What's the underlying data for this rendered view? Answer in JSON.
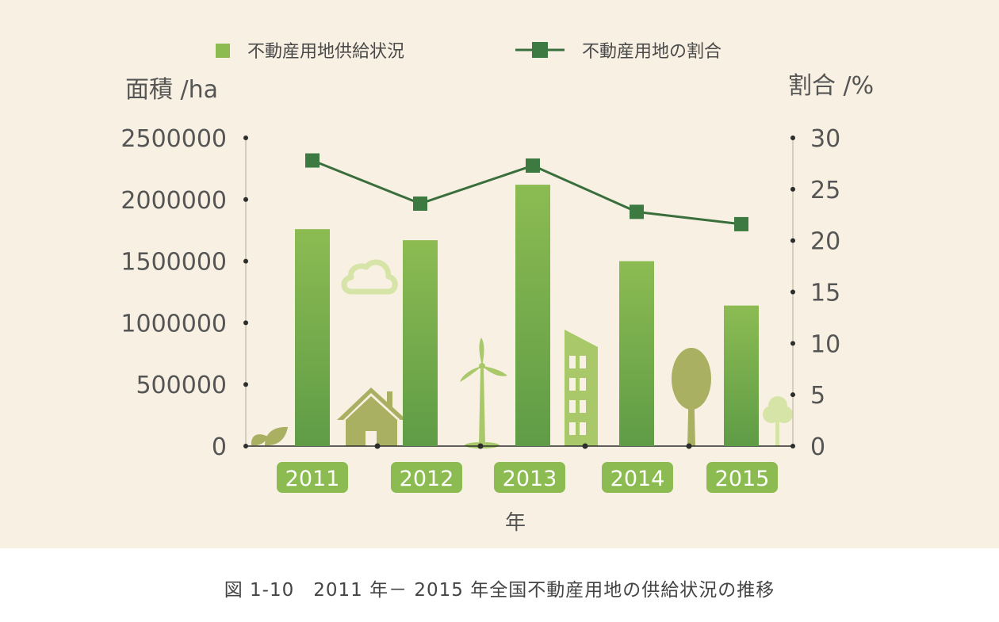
{
  "caption": "図 1-10　2011 年－ 2015 年全国不動産用地の供給状況の推移",
  "colors": {
    "background": "#f8f1e3",
    "bar_top": "#8cbb52",
    "bar_bottom": "#5f9c46",
    "line": "#3a6e3c",
    "marker": "#3d7a42",
    "decor_light": "#d7e4a8",
    "decor_olive": "#a9b061",
    "decor_green": "#a8c86a"
  },
  "chart_data": {
    "type": "bar+line",
    "categories": [
      "2011",
      "2012",
      "2013",
      "2014",
      "2015"
    ],
    "xlabel": "年",
    "left_axis": {
      "title": "面積 /ha",
      "min": 0,
      "max": 2500000,
      "ticks": [
        "0",
        "500000",
        "1000000",
        "1500000",
        "2000000",
        "2500000"
      ]
    },
    "right_axis": {
      "title": "割合 /%",
      "min": 0,
      "max": 30,
      "ticks": [
        "0",
        "5",
        "10",
        "15",
        "20",
        "25",
        "30"
      ]
    },
    "legend_position": "top",
    "series": [
      {
        "name": "不動産用地供給状況",
        "type": "bar",
        "axis": "left",
        "values": [
          1760000,
          1670000,
          2120000,
          1500000,
          1140000
        ]
      },
      {
        "name": "不動産用地の割合",
        "type": "line",
        "axis": "right",
        "values": [
          27.8,
          23.6,
          27.3,
          22.8,
          21.6
        ]
      }
    ]
  },
  "decorations": [
    "sprout-icon",
    "house-icon",
    "cloud-icon",
    "wind-turbine-icon",
    "building-icon",
    "tree-icon",
    "small-tree-icon"
  ]
}
